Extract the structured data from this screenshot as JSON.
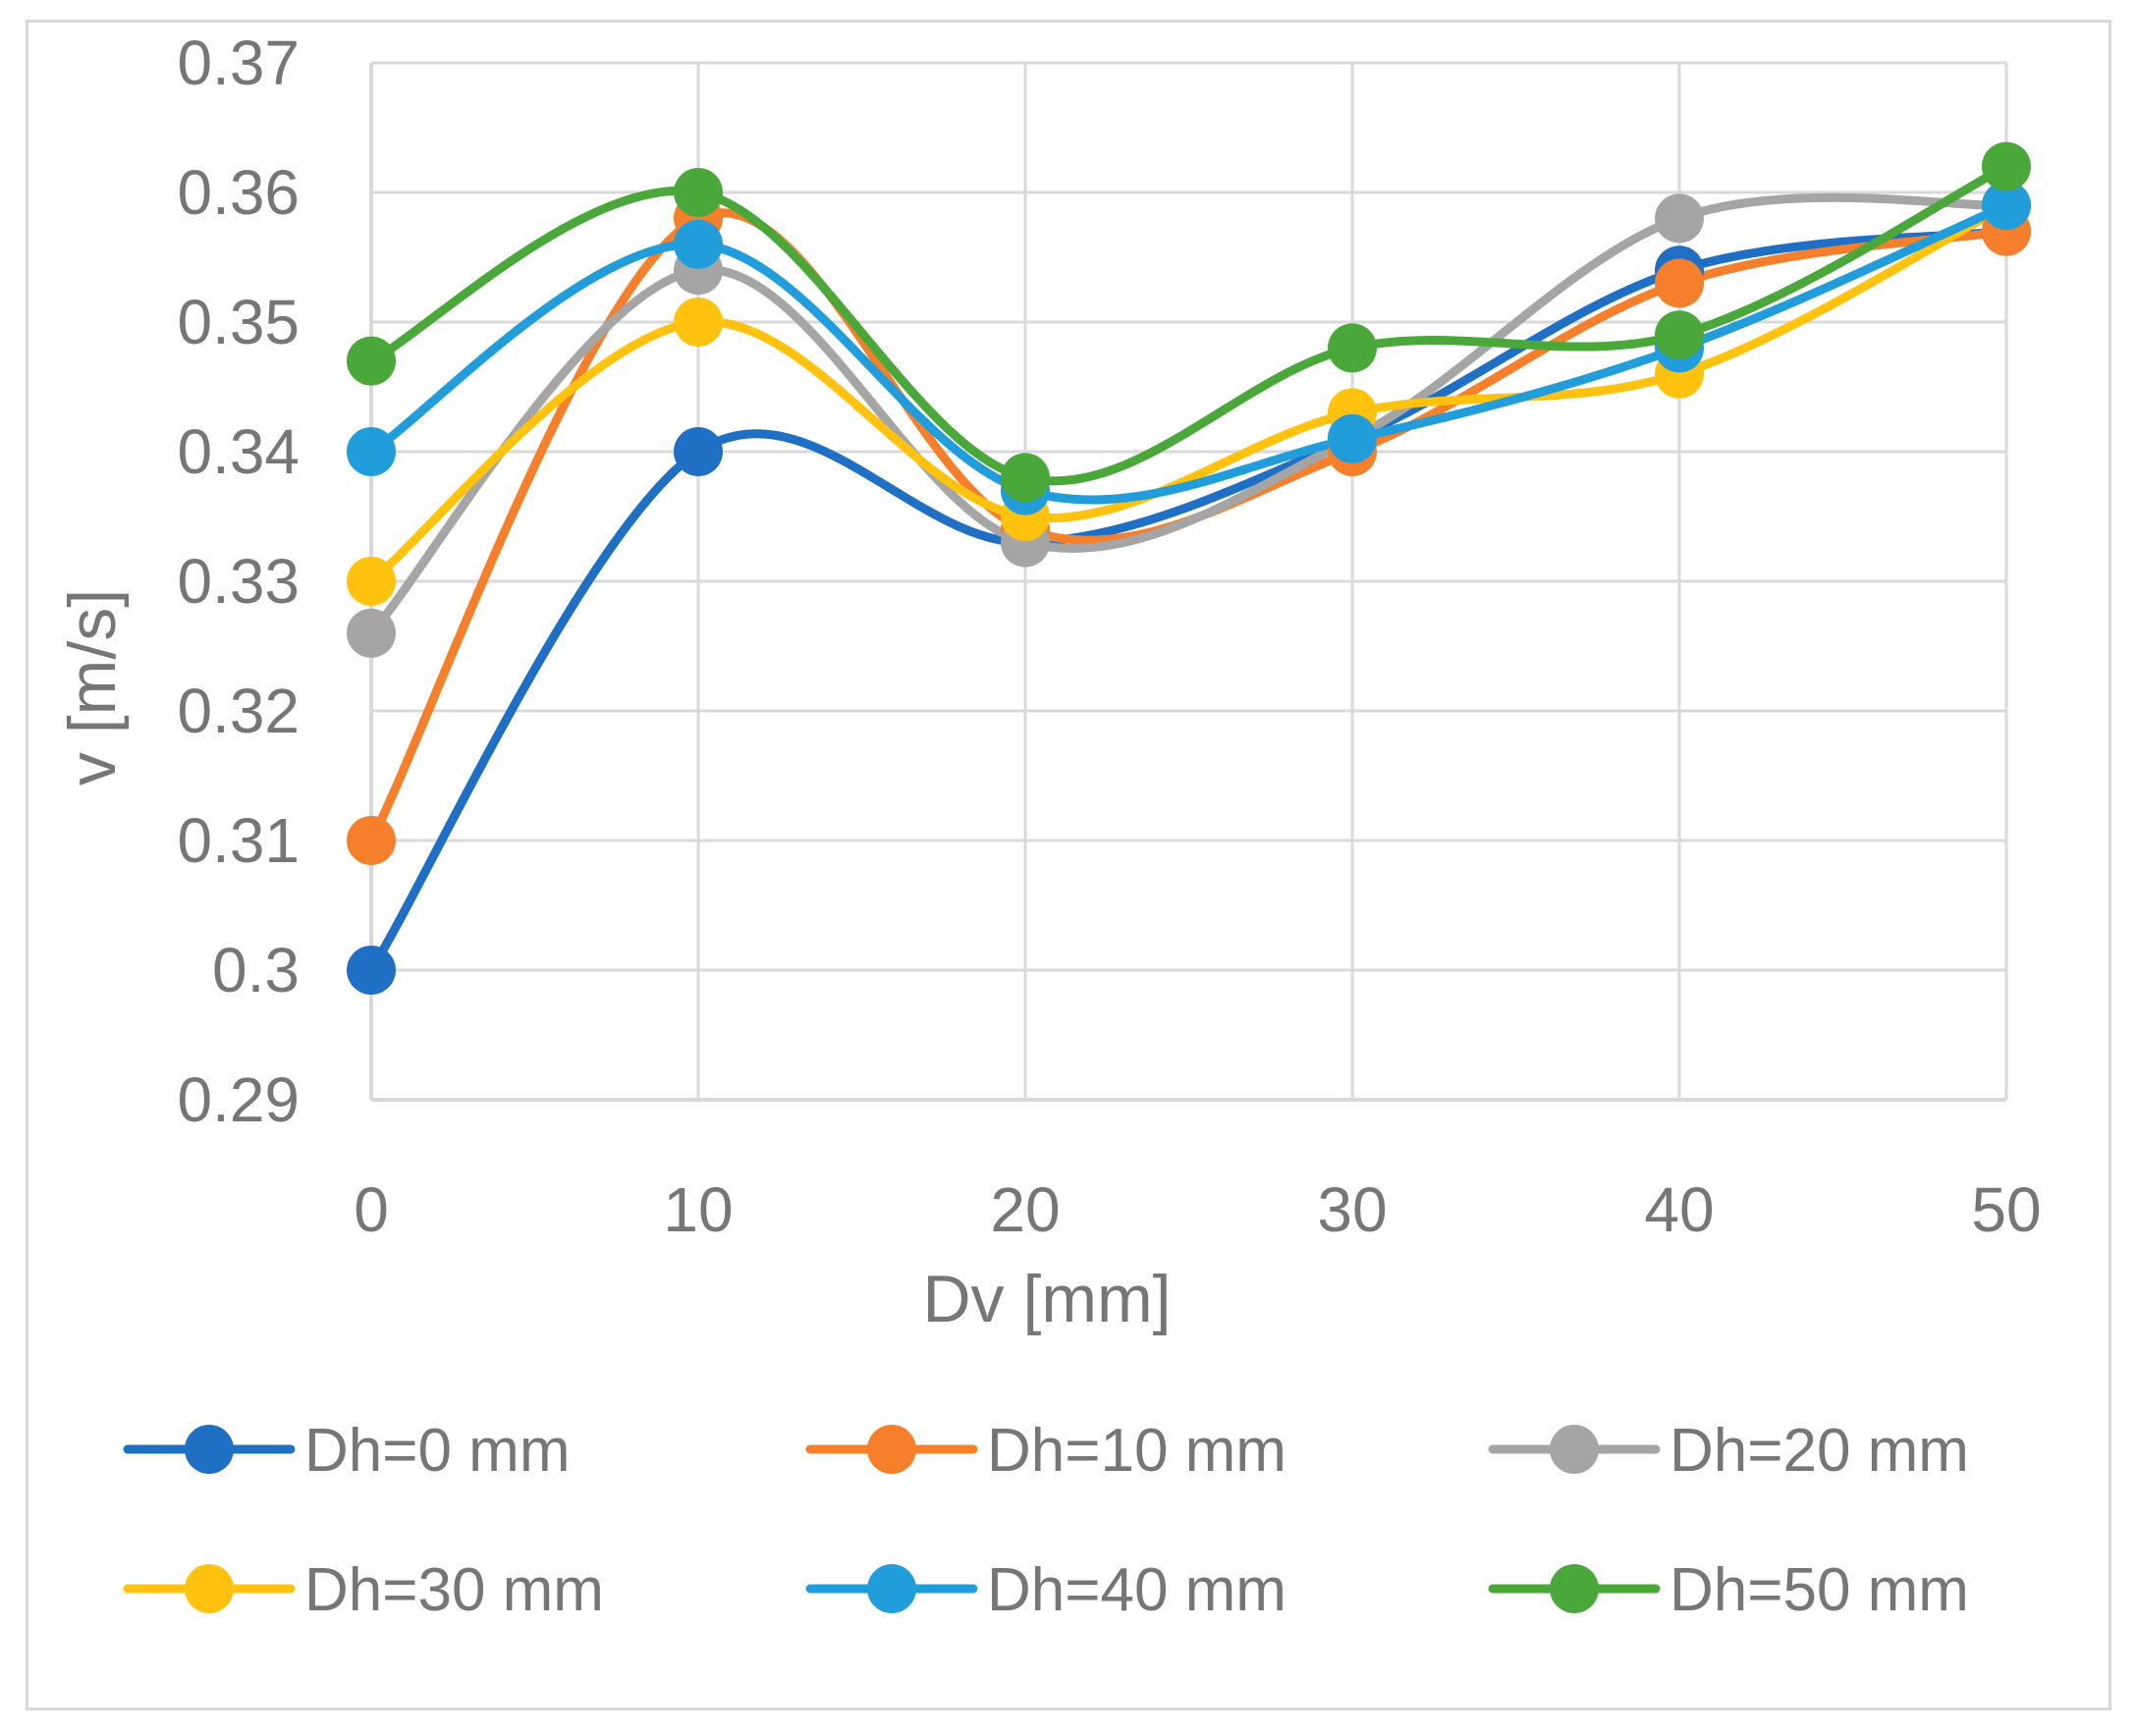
{
  "chart_data": {
    "type": "line",
    "smooth": true,
    "markers": "circle",
    "title": "",
    "xlabel": "Dv [mm]",
    "ylabel": "v [m/s]",
    "x": [
      0,
      10,
      20,
      30,
      40,
      50
    ],
    "x_tick_labels": [
      "0",
      "10",
      "20",
      "30",
      "40",
      "50"
    ],
    "xlim": [
      0,
      50
    ],
    "ylim": [
      0.29,
      0.37
    ],
    "y_ticks": [
      0.29,
      0.3,
      0.31,
      0.32,
      0.33,
      0.34,
      0.35,
      0.36,
      0.37
    ],
    "y_tick_labels": [
      "0.29",
      "0.3",
      "0.31",
      "0.32",
      "0.33",
      "0.34",
      "0.35",
      "0.36",
      "0.37"
    ],
    "grid": true,
    "legend_position": "bottom",
    "series": [
      {
        "name": "Dh=0 mm",
        "color": "#1f6fc5",
        "values": [
          0.3,
          0.34,
          0.333,
          0.341,
          0.354,
          0.357
        ]
      },
      {
        "name": "Dh=10 mm",
        "color": "#f57f2a",
        "values": [
          0.31,
          0.358,
          0.334,
          0.34,
          0.353,
          0.357
        ]
      },
      {
        "name": "Dh=20 mm",
        "color": "#a5a5a5",
        "values": [
          0.326,
          0.354,
          0.333,
          0.341,
          0.358,
          0.359
        ]
      },
      {
        "name": "Dh=30 mm",
        "color": "#ffc20e",
        "values": [
          0.33,
          0.35,
          0.335,
          0.343,
          0.346,
          0.359
        ]
      },
      {
        "name": "Dh=40 mm",
        "color": "#219ddb",
        "values": [
          0.34,
          0.356,
          0.337,
          0.341,
          0.348,
          0.359
        ]
      },
      {
        "name": "Dh=50 mm",
        "color": "#4aa83a",
        "values": [
          0.347,
          0.36,
          0.338,
          0.348,
          0.349,
          0.362
        ]
      }
    ]
  }
}
